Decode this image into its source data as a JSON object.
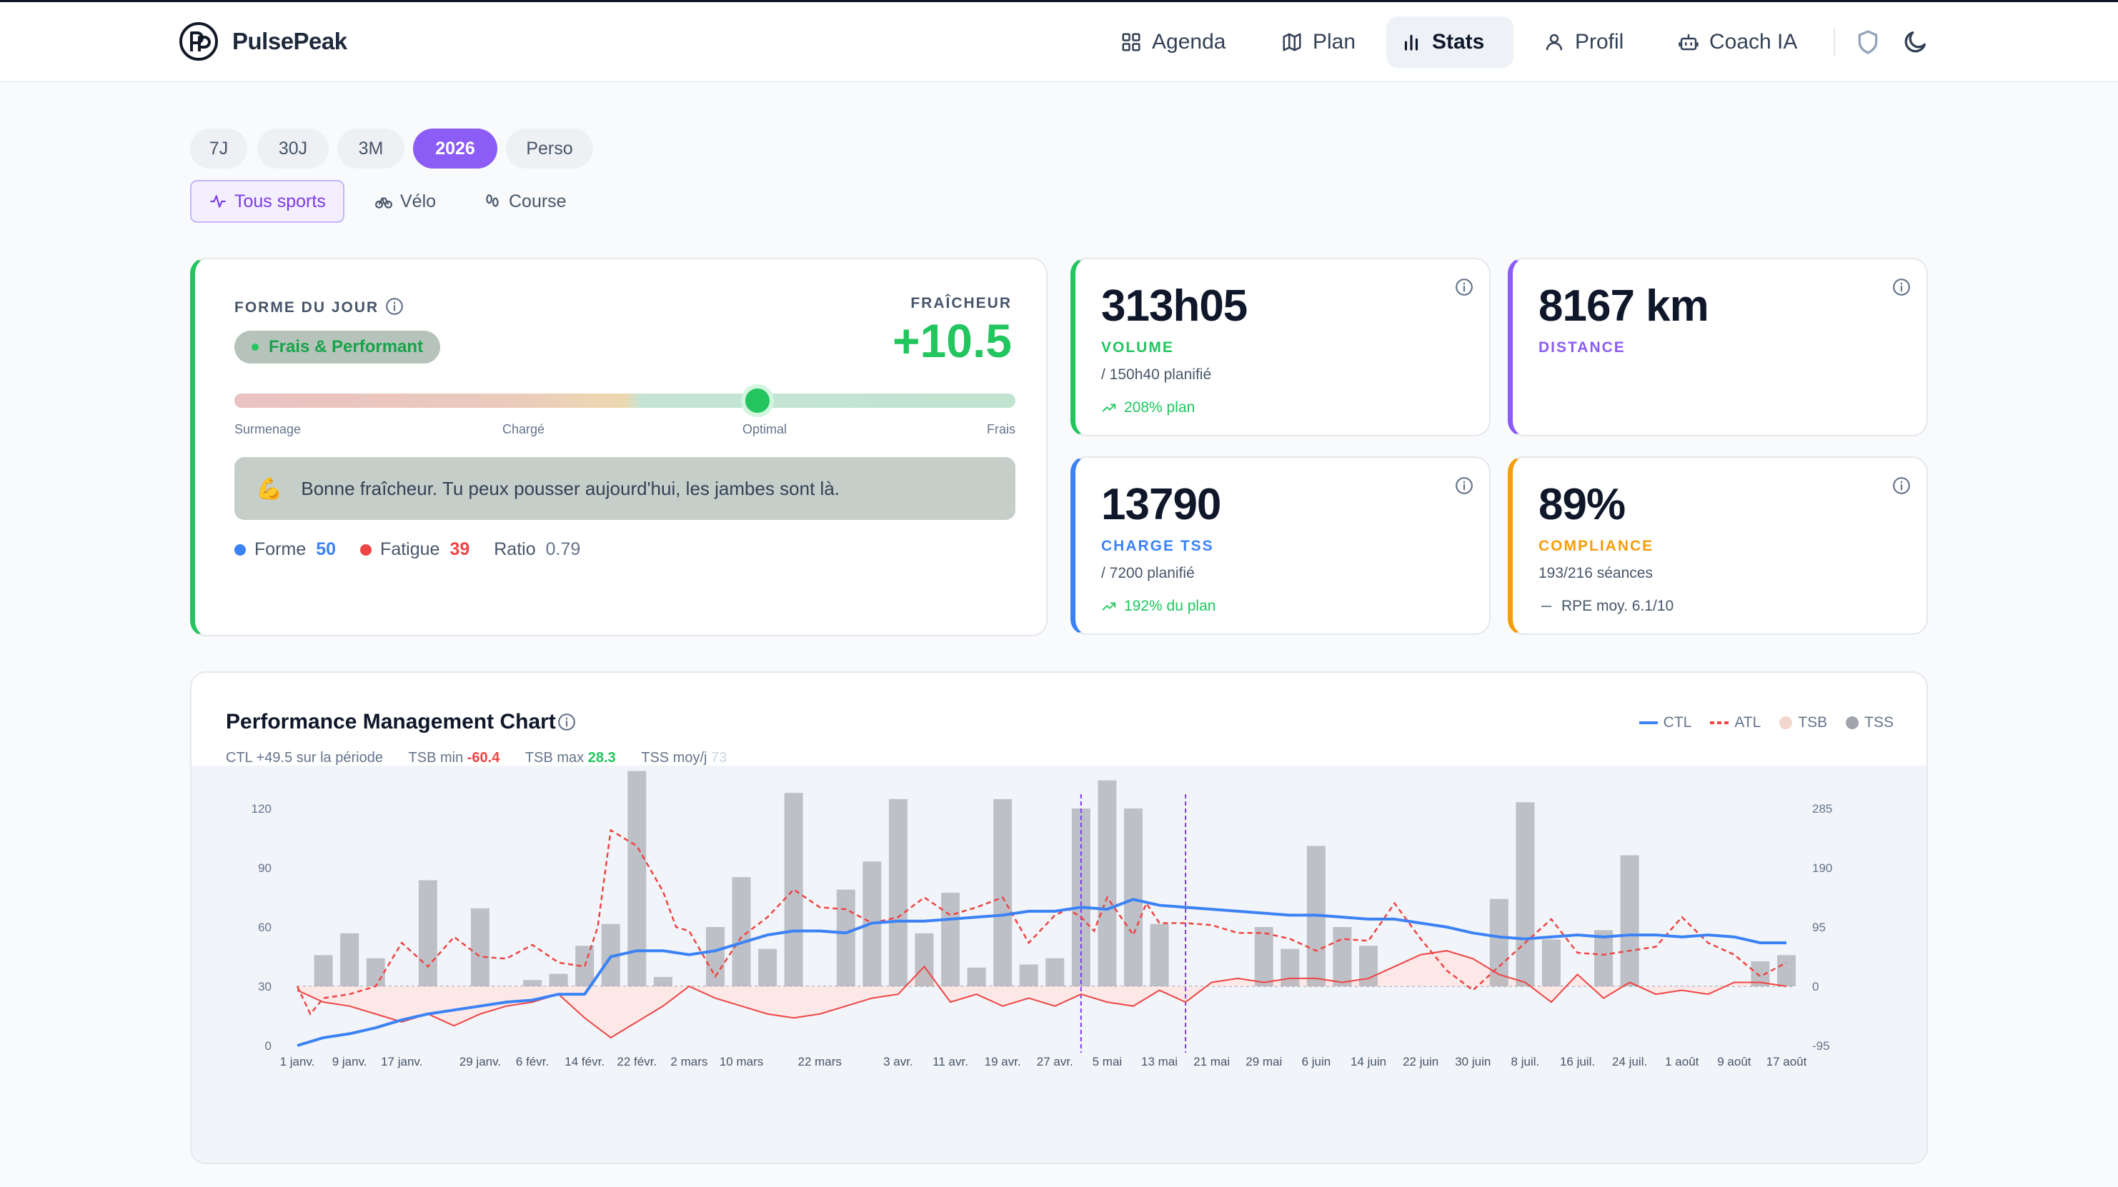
{
  "app": {
    "name": "PulsePeak"
  },
  "nav": {
    "items": [
      {
        "label": "Agenda",
        "icon": "grid-icon"
      },
      {
        "label": "Plan",
        "icon": "map-icon"
      },
      {
        "label": "Stats",
        "icon": "bar-chart-icon",
        "active": true
      },
      {
        "label": "Profil",
        "icon": "user-icon"
      },
      {
        "label": "Coach IA",
        "icon": "robot-icon"
      }
    ],
    "right_icons": [
      "shield-icon",
      "moon-icon"
    ]
  },
  "periods": [
    {
      "label": "7J"
    },
    {
      "label": "30J"
    },
    {
      "label": "3M"
    },
    {
      "label": "2026",
      "active": true
    },
    {
      "label": "Perso"
    }
  ],
  "sports": [
    {
      "label": "Tous sports",
      "icon": "activity-icon",
      "active": true
    },
    {
      "label": "Vélo",
      "icon": "bike-icon"
    },
    {
      "label": "Course",
      "icon": "footprints-icon"
    }
  ],
  "forme": {
    "title": "FORME DU JOUR",
    "badge": "Frais & Performant",
    "freshness_label": "FRAÎCHEUR",
    "freshness_value": "+10.5",
    "gauge_position": 0.67,
    "gauge_labels": [
      "Surmenage",
      "Chargé",
      "Optimal",
      "Frais"
    ],
    "emoji": "💪",
    "message": "Bonne fraîcheur. Tu peux pousser aujourd'hui, les jambes sont là.",
    "forme_label": "Forme",
    "forme_value": "50",
    "fatigue_label": "Fatigue",
    "fatigue_value": "39",
    "ratio_label": "Ratio",
    "ratio_value": "0.79"
  },
  "kpis": {
    "volume": {
      "value": "313h05",
      "label": "VOLUME",
      "sub": "/ 150h40 planifié",
      "trend": "208% plan",
      "color": "#22c55e"
    },
    "distance": {
      "value": "8167 km",
      "label": "DISTANCE",
      "color": "#8b5cf6"
    },
    "tss": {
      "value": "13790",
      "label": "CHARGE TSS",
      "sub": "/ 7200 planifié",
      "trend": "192% du plan",
      "color": "#3b82f6"
    },
    "compliance": {
      "value": "89%",
      "label": "COMPLIANCE",
      "sub": "193/216 séances",
      "trend": "RPE moy. 6.1/10",
      "color": "#f59e0b"
    }
  },
  "pmc": {
    "title": "Performance Management Chart",
    "stats": {
      "ctl": "CTL +49.5 sur la période",
      "tsb_min_label": "TSB min",
      "tsb_min": "-60.4",
      "tsb_max_label": "TSB max",
      "tsb_max": "28.3",
      "tss_label": "TSS moy/j",
      "tss": "73"
    },
    "legend": [
      "CTL",
      "ATL",
      "TSB",
      "TSS"
    ]
  },
  "chart_data": {
    "type": "line",
    "colors": {
      "CTL": "#3b82f6",
      "ATL": "#ef4444",
      "TSB": "#e8b8b0",
      "TSS": "#a1a5ab"
    },
    "x_tick_labels": [
      "1 janv.",
      "9 janv.",
      "17 janv.",
      "29 janv.",
      "6 févr.",
      "14 févr.",
      "22 févr.",
      "2 mars",
      "10 mars",
      "22 mars",
      "3 avr.",
      "11 avr.",
      "19 avr.",
      "27 avr.",
      "5 mai",
      "13 mai",
      "21 mai",
      "29 mai",
      "6 juin",
      "14 juin",
      "22 juin",
      "30 juin",
      "8 juil.",
      "16 juil.",
      "24 juil.",
      "1 août",
      "9 août",
      "17 août"
    ],
    "x_tick_days": [
      0,
      8,
      16,
      28,
      36,
      44,
      52,
      60,
      68,
      80,
      92,
      100,
      108,
      116,
      124,
      132,
      140,
      148,
      156,
      164,
      172,
      180,
      188,
      196,
      204,
      212,
      220,
      228
    ],
    "y_left_ticks": [
      0,
      30,
      60,
      90,
      120
    ],
    "y_right_ticks": [
      -95,
      0,
      95,
      190,
      285
    ],
    "y_left_range": [
      0,
      120
    ],
    "y_right_range": [
      -95,
      285
    ],
    "vlines_days": [
      120,
      136
    ],
    "ctl": {
      "days": [
        0,
        4,
        8,
        12,
        16,
        20,
        24,
        28,
        32,
        36,
        40,
        44,
        48,
        52,
        56,
        60,
        64,
        68,
        72,
        76,
        80,
        84,
        88,
        92,
        96,
        100,
        104,
        108,
        112,
        116,
        120,
        124,
        128,
        132,
        136,
        140,
        144,
        148,
        152,
        156,
        160,
        164,
        168,
        172,
        176,
        180,
        184,
        188,
        192,
        196,
        200,
        204,
        208,
        212,
        216,
        220,
        224,
        228
      ],
      "values": [
        0,
        4,
        6,
        9,
        13,
        16,
        18,
        20,
        22,
        23,
        26,
        26,
        45,
        48,
        48,
        46,
        48,
        52,
        56,
        58,
        58,
        57,
        62,
        63,
        63,
        64,
        65,
        66,
        68,
        68,
        70,
        69,
        74,
        71,
        70,
        69,
        68,
        67,
        66,
        66,
        65,
        64,
        64,
        62,
        60,
        57,
        55,
        54,
        55,
        56,
        55,
        56,
        56,
        55,
        56,
        55,
        52,
        52
      ]
    },
    "atl": {
      "days": [
        0,
        2,
        4,
        8,
        12,
        16,
        20,
        24,
        28,
        32,
        36,
        40,
        44,
        46,
        48,
        52,
        56,
        58,
        60,
        64,
        68,
        72,
        76,
        80,
        84,
        88,
        92,
        96,
        100,
        104,
        108,
        112,
        116,
        118,
        120,
        122,
        124,
        128,
        130,
        132,
        136,
        140,
        144,
        148,
        152,
        156,
        160,
        164,
        168,
        172,
        176,
        180,
        184,
        188,
        192,
        196,
        200,
        204,
        208,
        212,
        216,
        220,
        224,
        228
      ],
      "values": [
        30,
        16,
        24,
        26,
        30,
        52,
        40,
        55,
        45,
        44,
        51,
        42,
        40,
        60,
        109,
        101,
        78,
        60,
        58,
        35,
        55,
        65,
        79,
        70,
        69,
        62,
        65,
        75,
        66,
        70,
        75,
        52,
        66,
        69,
        65,
        58,
        75,
        56,
        72,
        62,
        62,
        61,
        57,
        57,
        54,
        48,
        54,
        53,
        72,
        54,
        38,
        28,
        40,
        52,
        64,
        47,
        46,
        48,
        50,
        65,
        52,
        46,
        35,
        42
      ]
    },
    "tsb": {
      "days": [
        0,
        4,
        8,
        12,
        16,
        20,
        24,
        28,
        32,
        36,
        40,
        44,
        48,
        52,
        56,
        60,
        64,
        68,
        72,
        76,
        80,
        84,
        88,
        92,
        96,
        100,
        104,
        108,
        112,
        116,
        120,
        124,
        128,
        132,
        136,
        140,
        144,
        148,
        152,
        156,
        160,
        164,
        168,
        172,
        176,
        180,
        184,
        188,
        192,
        196,
        200,
        204,
        208,
        212,
        216,
        220,
        224,
        228
      ],
      "values": [
        -2,
        -8,
        -10,
        -14,
        -18,
        -14,
        -20,
        -14,
        -10,
        -8,
        -4,
        -16,
        -26,
        -18,
        -10,
        0,
        -6,
        -10,
        -14,
        -16,
        -14,
        -10,
        -6,
        -4,
        10,
        -8,
        -4,
        -10,
        -6,
        -10,
        -4,
        -8,
        -10,
        -2,
        -8,
        2,
        4,
        2,
        4,
        4,
        2,
        4,
        10,
        16,
        18,
        14,
        6,
        2,
        -8,
        6,
        -6,
        2,
        -4,
        -2,
        -4,
        2,
        2,
        0
      ]
    },
    "tss_bars": {
      "days": [
        4,
        8,
        12,
        20,
        28,
        36,
        40,
        44,
        48,
        52,
        56,
        64,
        68,
        72,
        76,
        84,
        88,
        92,
        96,
        100,
        104,
        108,
        112,
        116,
        120,
        124,
        128,
        132,
        136,
        148,
        152,
        156,
        160,
        164,
        168,
        172,
        176,
        180,
        184,
        188,
        192,
        196,
        200,
        204,
        208,
        212,
        216,
        220,
        224,
        228
      ],
      "values": [
        50,
        85,
        45,
        170,
        125,
        10,
        20,
        65,
        100,
        345,
        15,
        95,
        175,
        60,
        310,
        155,
        200,
        300,
        85,
        150,
        30,
        300,
        35,
        45,
        285,
        330,
        285,
        100,
        0,
        95,
        60,
        225,
        95,
        65,
        0,
        0,
        0,
        0,
        140,
        295,
        75,
        0,
        90,
        210,
        0,
        0,
        0,
        0,
        40,
        50
      ]
    }
  }
}
